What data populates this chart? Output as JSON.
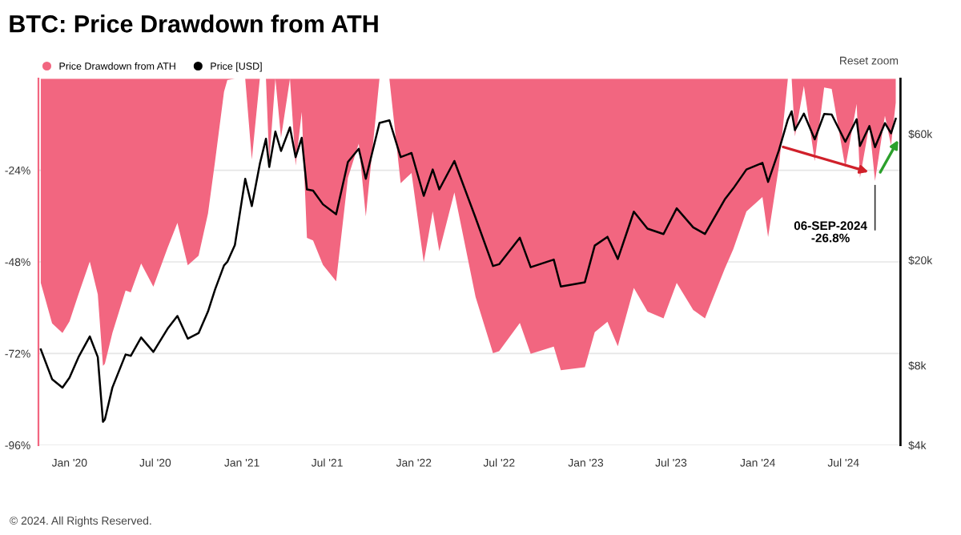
{
  "chart_data": {
    "type": "line",
    "title": "BTC: Price Drawdown from ATH",
    "x": [
      "2019-11-01",
      "2019-11-25",
      "2019-12-17",
      "2020-01-01",
      "2020-01-20",
      "2020-02-13",
      "2020-03-01",
      "2020-03-12",
      "2020-03-16",
      "2020-04-01",
      "2020-04-29",
      "2020-05-10",
      "2020-06-01",
      "2020-06-27",
      "2020-07-27",
      "2020-08-17",
      "2020-09-08",
      "2020-10-01",
      "2020-10-21",
      "2020-11-05",
      "2020-11-24",
      "2020-12-01",
      "2020-12-17",
      "2021-01-08",
      "2021-01-22",
      "2021-02-08",
      "2021-02-21",
      "2021-02-28",
      "2021-03-13",
      "2021-03-25",
      "2021-04-13",
      "2021-04-25",
      "2021-05-08",
      "2021-05-19",
      "2021-06-01",
      "2021-06-22",
      "2021-07-20",
      "2021-08-14",
      "2021-09-06",
      "2021-09-21",
      "2021-10-20",
      "2021-11-10",
      "2021-12-04",
      "2021-12-27",
      "2022-01-22",
      "2022-02-10",
      "2022-02-24",
      "2022-03-28",
      "2022-05-12",
      "2022-06-18",
      "2022-07-01",
      "2022-08-14",
      "2022-09-06",
      "2022-10-25",
      "2022-11-09",
      "2022-12-30",
      "2023-01-20",
      "2023-02-16",
      "2023-03-10",
      "2023-04-13",
      "2023-05-12",
      "2023-06-15",
      "2023-07-13",
      "2023-08-17",
      "2023-09-11",
      "2023-10-23",
      "2023-11-10",
      "2023-12-08",
      "2024-01-11",
      "2024-01-23",
      "2024-02-15",
      "2024-03-05",
      "2024-03-13",
      "2024-03-20",
      "2024-04-08",
      "2024-05-01",
      "2024-05-21",
      "2024-06-06",
      "2024-07-05",
      "2024-07-29",
      "2024-08-05",
      "2024-08-25",
      "2024-09-06",
      "2024-09-27",
      "2024-10-10",
      "2024-10-20"
    ],
    "series": [
      {
        "name": "Price Drawdown from ATH",
        "type": "area",
        "color": "#f26680",
        "values": [
          -53.5,
          -64.1,
          -66.6,
          -63.6,
          -56.5,
          -47.9,
          -56.5,
          -75.2,
          -74.7,
          -66.6,
          -55.5,
          -56.0,
          -48.4,
          -54.5,
          -44.4,
          -37.8,
          -48.9,
          -46.4,
          -35.3,
          -21.6,
          -3.4,
          -0.4,
          0,
          0,
          -21.2,
          0,
          0,
          -21.7,
          0,
          -15.5,
          0,
          -22.8,
          -8.7,
          -41.7,
          -42.4,
          -48.8,
          -53.1,
          -26.0,
          -17.0,
          -36.1,
          0,
          0,
          -27.4,
          -24.7,
          -48.1,
          -34.8,
          -45.2,
          -29.8,
          -57.2,
          -71.9,
          -71.4,
          -64.0,
          -72.1,
          -70.2,
          -76.4,
          -75.6,
          -66.4,
          -63.7,
          -70.1,
          -54.8,
          -61.0,
          -62.8,
          -53.5,
          -60.6,
          -62.8,
          -49.8,
          -44.7,
          -34.8,
          -31.0,
          -41.5,
          -23.0,
          0,
          0,
          -15.1,
          -1.9,
          -21.6,
          -2.3,
          -2.7,
          -23.3,
          -6.6,
          -26.0,
          -12.1,
          -26.8,
          -9.7,
          -17.4,
          -6.3
        ]
      },
      {
        "name": "Price [USD]",
        "axis": "y2",
        "color": "#000000",
        "values": [
          9200,
          7100,
          6600,
          7200,
          8600,
          10300,
          8600,
          4900,
          5000,
          6600,
          8800,
          8700,
          10200,
          9000,
          11000,
          12300,
          10100,
          10600,
          12800,
          15500,
          19100,
          19700,
          22800,
          40600,
          32000,
          46200,
          57500,
          45000,
          61200,
          51700,
          63500,
          49000,
          58000,
          37000,
          36600,
          32500,
          29800,
          47000,
          52700,
          40600,
          66000,
          67500,
          49000,
          50800,
          35000,
          44000,
          37000,
          47400,
          28900,
          19000,
          19300,
          24300,
          18800,
          20100,
          15900,
          16500,
          22700,
          24500,
          20200,
          30500,
          26300,
          25100,
          31400,
          26600,
          25100,
          33900,
          37300,
          44000,
          46600,
          39500,
          52000,
          68000,
          73000,
          62000,
          71600,
          57200,
          71300,
          71000,
          56000,
          68200,
          54000,
          64200,
          53440,
          65900,
          60300,
          68400
        ]
      }
    ],
    "xlim": [
      "2019-10-27",
      "2024-10-30"
    ],
    "xticks": [
      {
        "value": "2020-01-01",
        "label": "Jan '20"
      },
      {
        "value": "2020-07-01",
        "label": "Jul '20"
      },
      {
        "value": "2021-01-01",
        "label": "Jan '21"
      },
      {
        "value": "2021-07-01",
        "label": "Jul '21"
      },
      {
        "value": "2022-01-01",
        "label": "Jan '22"
      },
      {
        "value": "2022-07-01",
        "label": "Jul '22"
      },
      {
        "value": "2023-01-01",
        "label": "Jan '23"
      },
      {
        "value": "2023-07-01",
        "label": "Jul '23"
      },
      {
        "value": "2024-01-01",
        "label": "Jan '24"
      },
      {
        "value": "2024-07-01",
        "label": "Jul '24"
      }
    ],
    "ylim": [
      -96,
      0
    ],
    "yticks": [
      {
        "value": -24,
        "label": "-24%"
      },
      {
        "value": -48,
        "label": "-48%"
      },
      {
        "value": -72,
        "label": "-72%"
      },
      {
        "value": -96,
        "label": "-96%"
      }
    ],
    "y2lim": [
      4000,
      97000
    ],
    "y2ticks": [
      {
        "value": 4000,
        "label": "$4k"
      },
      {
        "value": 8000,
        "label": "$8k"
      },
      {
        "value": 20000,
        "label": "$20k"
      },
      {
        "value": 60000,
        "label": "$60k"
      }
    ],
    "log": "y2",
    "grid": "y",
    "legend": "top left",
    "annotations": [
      "Reset zoom",
      {
        "text": "06-SEP-2024\n-26.8%",
        "x": "2024-09-06",
        "y": -26.8
      },
      "© 2024. All Rights Reserved."
    ]
  }
}
